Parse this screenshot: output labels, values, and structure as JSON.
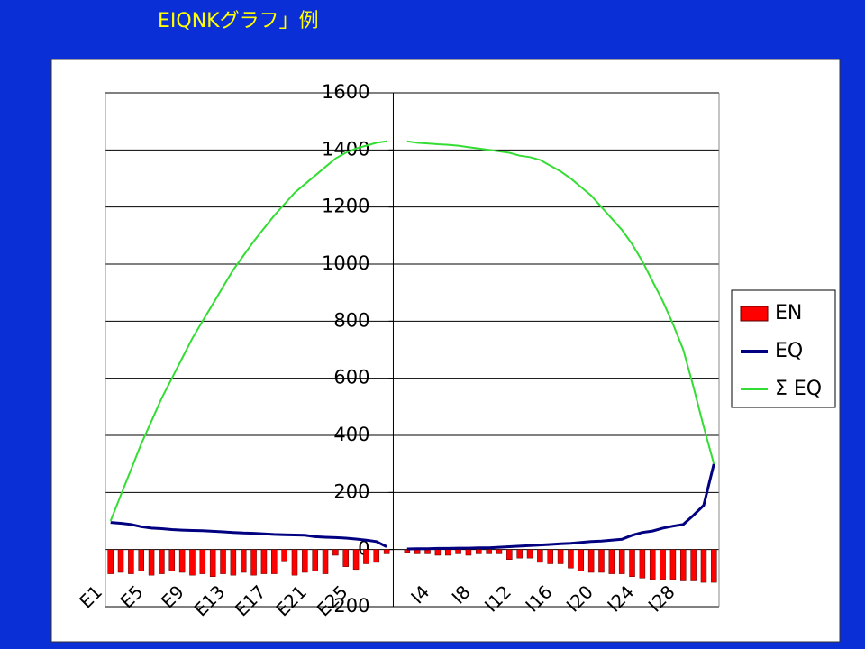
{
  "chart_data": {
    "type": "bar",
    "title": "EIQNKグラフ」例",
    "categories": [
      "E1",
      null,
      null,
      null,
      "E5",
      null,
      null,
      null,
      "E9",
      null,
      null,
      null,
      "E13",
      null,
      null,
      null,
      "E17",
      null,
      null,
      null,
      "E21",
      null,
      null,
      null,
      "E25",
      null,
      null,
      null,
      null,
      null,
      null,
      null,
      "I4",
      null,
      null,
      null,
      "I8",
      null,
      null,
      null,
      "I12",
      null,
      null,
      null,
      "I16",
      null,
      null,
      null,
      "I20",
      null,
      null,
      null,
      "I24",
      null,
      null,
      null,
      "I28",
      null,
      null,
      null
    ],
    "series": [
      {
        "name": "EN",
        "type": "bar",
        "color": "#ff0000",
        "values": [
          -85,
          -80,
          -85,
          -75,
          -90,
          -85,
          -75,
          -80,
          -90,
          -85,
          -95,
          -85,
          -90,
          -80,
          -90,
          -85,
          -85,
          -40,
          -90,
          -80,
          -75,
          -85,
          -20,
          -60,
          -70,
          -50,
          -45,
          -15,
          null,
          -10,
          -15,
          -15,
          -20,
          -20,
          -15,
          -20,
          -15,
          -15,
          -15,
          -35,
          -30,
          -30,
          -45,
          -50,
          -50,
          -65,
          -75,
          -80,
          -80,
          -85,
          -85,
          -95,
          -100,
          -105,
          -105,
          -105,
          -110,
          -110,
          -115,
          -115
        ]
      },
      {
        "name": "EQ",
        "type": "line",
        "color": "#000080",
        "values": [
          95,
          92,
          88,
          80,
          75,
          73,
          70,
          68,
          67,
          66,
          64,
          62,
          60,
          58,
          57,
          55,
          53,
          52,
          51,
          50,
          45,
          43,
          42,
          40,
          37,
          33,
          28,
          10,
          null,
          2,
          3,
          3,
          4,
          4,
          5,
          5,
          6,
          6,
          8,
          10,
          12,
          14,
          16,
          18,
          20,
          22,
          25,
          28,
          30,
          33,
          36,
          50,
          60,
          65,
          75,
          82,
          88,
          120,
          155,
          300
        ]
      },
      {
        "name": "Σ EQ",
        "type": "line",
        "color": "#33dd33",
        "values": [
          100,
          190,
          280,
          370,
          450,
          530,
          600,
          670,
          740,
          800,
          860,
          920,
          980,
          1030,
          1080,
          1125,
          1170,
          1210,
          1250,
          1280,
          1310,
          1340,
          1370,
          1390,
          1405,
          1415,
          1425,
          1430,
          null,
          1430,
          1425,
          1423,
          1420,
          1418,
          1415,
          1410,
          1405,
          1400,
          1395,
          1390,
          1380,
          1375,
          1365,
          1345,
          1325,
          1300,
          1270,
          1240,
          1200,
          1160,
          1120,
          1070,
          1010,
          940,
          870,
          790,
          700,
          570,
          430,
          300
        ]
      }
    ],
    "ylim": [
      -200,
      1600
    ],
    "yticks": [
      -200,
      0,
      200,
      400,
      600,
      800,
      1000,
      1200,
      1400,
      1600
    ],
    "grid": true,
    "legend": "right"
  }
}
